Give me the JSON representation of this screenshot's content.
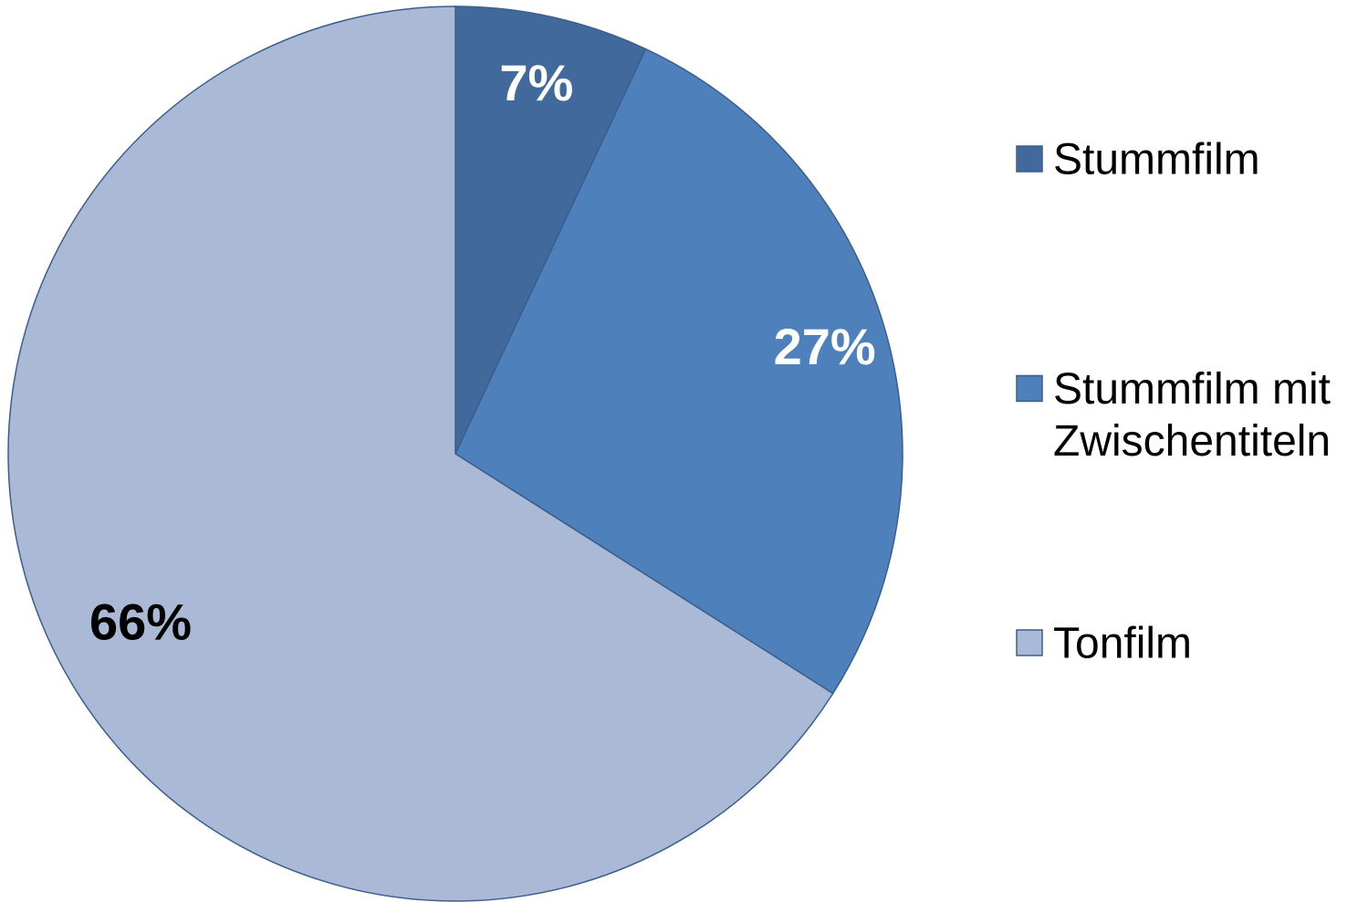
{
  "chart_data": {
    "type": "pie",
    "categories": [
      "Stummfilm",
      "Stummfilm mit Zwischentiteln",
      "Tonfilm"
    ],
    "values": [
      7,
      27,
      66
    ],
    "data_labels": [
      "7%",
      "27%",
      "66%"
    ],
    "legend": {
      "placement": "right",
      "entries": [
        {
          "lines": [
            "Stummfilm"
          ]
        },
        {
          "lines": [
            "Stummfilm mit",
            "Zwischentiteln"
          ]
        },
        {
          "lines": [
            "Tonfilm"
          ]
        }
      ]
    },
    "colors": [
      "#41699C",
      "#4E80BC",
      "#AAB9D6"
    ],
    "label_colors": [
      "#FFFFFF",
      "#FFFFFF",
      "#000000"
    ],
    "edge_color": "#3A5F8F"
  }
}
